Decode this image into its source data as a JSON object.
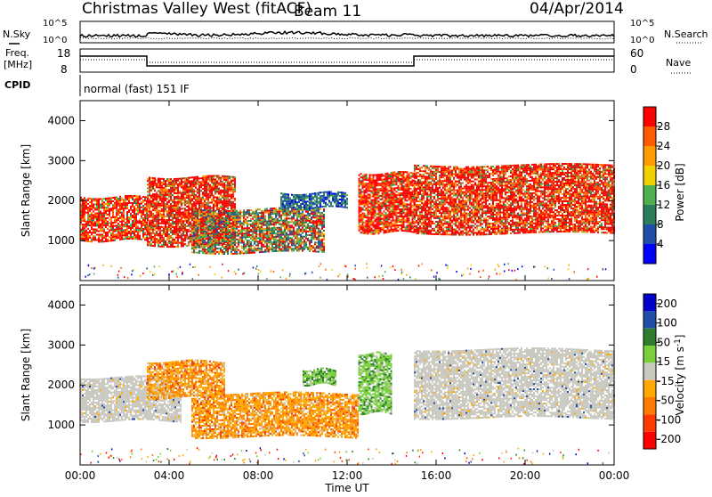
{
  "header": {
    "station": "Christmas Valley West (fitACF)",
    "beam": "Beam 11",
    "date": "04/Apr/2014"
  },
  "status_panels": {
    "nsky_label": "N.Sky",
    "nsky_ticks": [
      "10^5",
      "10^0"
    ],
    "nsearch_label": "N.Search",
    "nsearch_ticks": [
      "10^5",
      "10^0"
    ],
    "freq_label_line1": "Freq.",
    "freq_label_line2": "[MHz]",
    "freq_ticks": [
      "18",
      "8"
    ],
    "nave_label": "Nave",
    "nave_ticks": [
      "60",
      "0"
    ],
    "cpid_label": "CPID",
    "cpid_text": "normal (fast) 151 IF"
  },
  "colors": {
    "power_scale": [
      "#0000ff",
      "#1f4fa8",
      "#2e7d5a",
      "#50b04f",
      "#f0d000",
      "#ff9a00",
      "#ff5a00",
      "#ff0000"
    ],
    "velocity_scale": [
      "#ff0000",
      "#ff3a00",
      "#ff7a00",
      "#ffa800",
      "#c9c9c0",
      "#7ad03c",
      "#2e7d2e",
      "#1f4fa8",
      "#0000c8"
    ]
  },
  "chart_data": [
    {
      "type": "heatmap",
      "title": "",
      "xlabel": "Time UT",
      "ylabel": "Slant Range [km]",
      "x_range_hours": [
        0,
        24
      ],
      "xtick_labels": [
        "00:00",
        "04:00",
        "08:00",
        "12:00",
        "16:00",
        "20:00",
        "00:00"
      ],
      "ylim_km": [
        0,
        4500
      ],
      "ytick_values": [
        1000,
        2000,
        3000,
        4000
      ],
      "colorbar": {
        "label": "Power [dB]",
        "range": [
          0,
          32
        ],
        "tick_labels": [
          "4",
          "8",
          "12",
          "16",
          "20",
          "24",
          "28"
        ]
      },
      "regions": [
        {
          "t_start": 0.0,
          "t_end": 3.0,
          "r_min": 1000,
          "r_max": 2100,
          "level": "high"
        },
        {
          "t_start": 3.0,
          "t_end": 7.0,
          "r_min": 900,
          "r_max": 2600,
          "level": "high"
        },
        {
          "t_start": 5.0,
          "t_end": 11.0,
          "r_min": 700,
          "r_max": 1800,
          "level": "medium"
        },
        {
          "t_start": 9.0,
          "t_end": 12.0,
          "r_min": 1800,
          "r_max": 2200,
          "level": "low"
        },
        {
          "t_start": 12.5,
          "t_end": 15.0,
          "r_min": 1200,
          "r_max": 2700,
          "level": "high"
        },
        {
          "t_start": 15.0,
          "t_end": 24.0,
          "r_min": 1200,
          "r_max": 2900,
          "level": "high"
        }
      ]
    },
    {
      "type": "heatmap",
      "title": "",
      "xlabel": "Time UT",
      "ylabel": "Slant Range [km]",
      "x_range_hours": [
        0,
        24
      ],
      "xtick_labels": [
        "00:00",
        "04:00",
        "08:00",
        "12:00",
        "16:00",
        "20:00",
        "00:00"
      ],
      "ylim_km": [
        0,
        4500
      ],
      "ytick_values": [
        1000,
        2000,
        3000,
        4000
      ],
      "colorbar": {
        "label": "Velocity [m s^-1]",
        "range": [
          -250,
          250
        ],
        "tick_labels": [
          "200",
          "100",
          "50",
          "15",
          "-15",
          "-50",
          "-100",
          "-200"
        ]
      },
      "regions": [
        {
          "t_start": 0.0,
          "t_end": 4.5,
          "r_min": 1100,
          "r_max": 2200,
          "level": "ground"
        },
        {
          "t_start": 3.0,
          "t_end": 6.5,
          "r_min": 1700,
          "r_max": 2600,
          "level": "orange"
        },
        {
          "t_start": 5.0,
          "t_end": 12.5,
          "r_min": 700,
          "r_max": 1800,
          "level": "orange"
        },
        {
          "t_start": 10.0,
          "t_end": 11.5,
          "r_min": 2000,
          "r_max": 2400,
          "level": "green"
        },
        {
          "t_start": 12.5,
          "t_end": 14.0,
          "r_min": 1300,
          "r_max": 2800,
          "level": "green"
        },
        {
          "t_start": 15.0,
          "t_end": 24.0,
          "r_min": 1200,
          "r_max": 2900,
          "level": "ground"
        }
      ]
    }
  ]
}
